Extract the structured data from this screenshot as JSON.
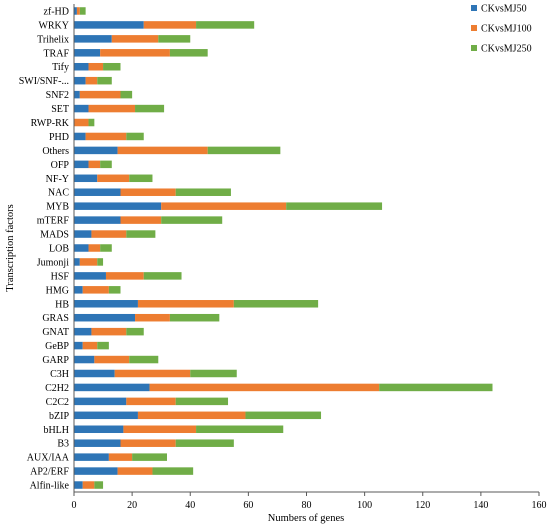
{
  "chart_data": {
    "type": "bar",
    "orientation": "horizontal",
    "stacked": true,
    "title": "",
    "xlabel": "Numbers of genes",
    "ylabel": "Transcription factors",
    "xlim": [
      0,
      160
    ],
    "xticks": [
      0,
      20,
      40,
      60,
      80,
      100,
      120,
      140,
      160
    ],
    "grid": false,
    "legend_position": "top-right",
    "categories": [
      "zf-HD",
      "WRKY",
      "Trihelix",
      "TRAF",
      "Tify",
      "SWI/SNF-...",
      "SNF2",
      "SET",
      "RWP-RK",
      "PHD",
      "Others",
      "OFP",
      "NF-Y",
      "NAC",
      "MYB",
      "mTERF",
      "MADS",
      "LOB",
      "Jumonji",
      "HSF",
      "HMG",
      "HB",
      "GRAS",
      "GNAT",
      "GeBP",
      "GARP",
      "C3H",
      "C2H2",
      "C2C2",
      "bZIP",
      "bHLH",
      "B3",
      "AUX/IAA",
      "AP2/ERF",
      "Alfin-like"
    ],
    "series": [
      {
        "name": "CKvsMJ50",
        "color": "#2E75B6",
        "values": [
          1,
          24,
          13,
          9,
          5,
          4,
          2,
          5,
          0,
          4,
          15,
          5,
          8,
          16,
          30,
          16,
          6,
          5,
          2,
          11,
          3,
          22,
          21,
          6,
          3,
          7,
          14,
          26,
          18,
          22,
          17,
          16,
          12,
          15,
          3
        ]
      },
      {
        "name": "CKvsMJ100",
        "color": "#ED7D31",
        "values": [
          1,
          18,
          16,
          24,
          5,
          4,
          14,
          16,
          5,
          14,
          31,
          4,
          11,
          19,
          43,
          14,
          12,
          4,
          6,
          13,
          9,
          33,
          12,
          12,
          5,
          12,
          26,
          79,
          17,
          37,
          25,
          19,
          8,
          12,
          4
        ]
      },
      {
        "name": "CKvsMJ250",
        "color": "#70AD47",
        "values": [
          2,
          20,
          11,
          13,
          6,
          5,
          4,
          10,
          2,
          6,
          25,
          4,
          8,
          19,
          33,
          21,
          10,
          4,
          2,
          13,
          4,
          29,
          17,
          6,
          4,
          10,
          16,
          39,
          18,
          26,
          30,
          20,
          12,
          14,
          3
        ]
      }
    ]
  }
}
